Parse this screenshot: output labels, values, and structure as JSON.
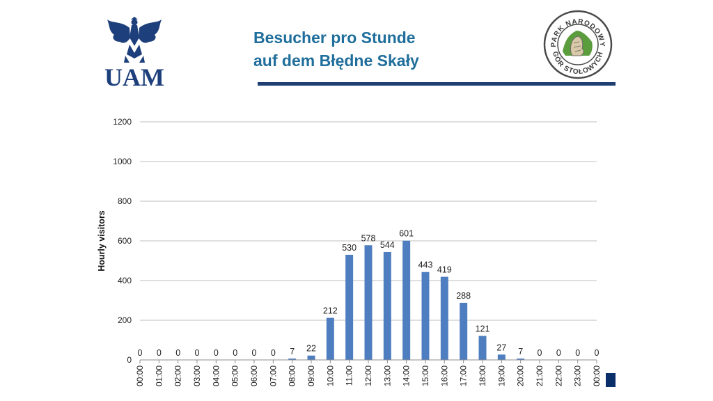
{
  "header": {
    "title_line1": "Besucher pro Stunde",
    "title_line2": "auf dem Błędne Skały",
    "title_color": "#1f6e9c",
    "rule_color": "#1f3f73"
  },
  "logos": {
    "left": {
      "name": "eagle-emblem",
      "text": "UAM"
    },
    "right": {
      "name": "park-narodowy-seal",
      "text_top": "PARK NARODOWY",
      "text_bottom": "GÓR STOŁOWYCH"
    }
  },
  "chart_data": {
    "type": "bar",
    "title": "",
    "xlabel": "",
    "ylabel": "Hourly visitors",
    "ylim": [
      0,
      1200
    ],
    "yticks": [
      0,
      200,
      400,
      600,
      800,
      1000,
      1200
    ],
    "grid": true,
    "bar_color": "#4f7ec0",
    "categories": [
      "00:00",
      "01:00",
      "02:00",
      "03:00",
      "04:00",
      "05:00",
      "06:00",
      "07:00",
      "08:00",
      "09:00",
      "10:00",
      "11:00",
      "12:00",
      "13:00",
      "14:00",
      "15:00",
      "16:00",
      "17:00",
      "18:00",
      "19:00",
      "20:00",
      "21:00",
      "22:00",
      "23:00",
      "00:00"
    ],
    "values": [
      0,
      0,
      0,
      0,
      0,
      0,
      0,
      0,
      7,
      22,
      212,
      530,
      578,
      544,
      601,
      443,
      419,
      288,
      121,
      27,
      7,
      0,
      0,
      0,
      0
    ],
    "data_labels": [
      "0",
      "0",
      "0",
      "0",
      "0",
      "0",
      "0",
      "0",
      "7",
      "22",
      "212",
      "530",
      "578",
      "544",
      "601",
      "443",
      "419",
      "288",
      "121",
      "27",
      "7",
      "0",
      "0",
      "0",
      "0"
    ]
  }
}
